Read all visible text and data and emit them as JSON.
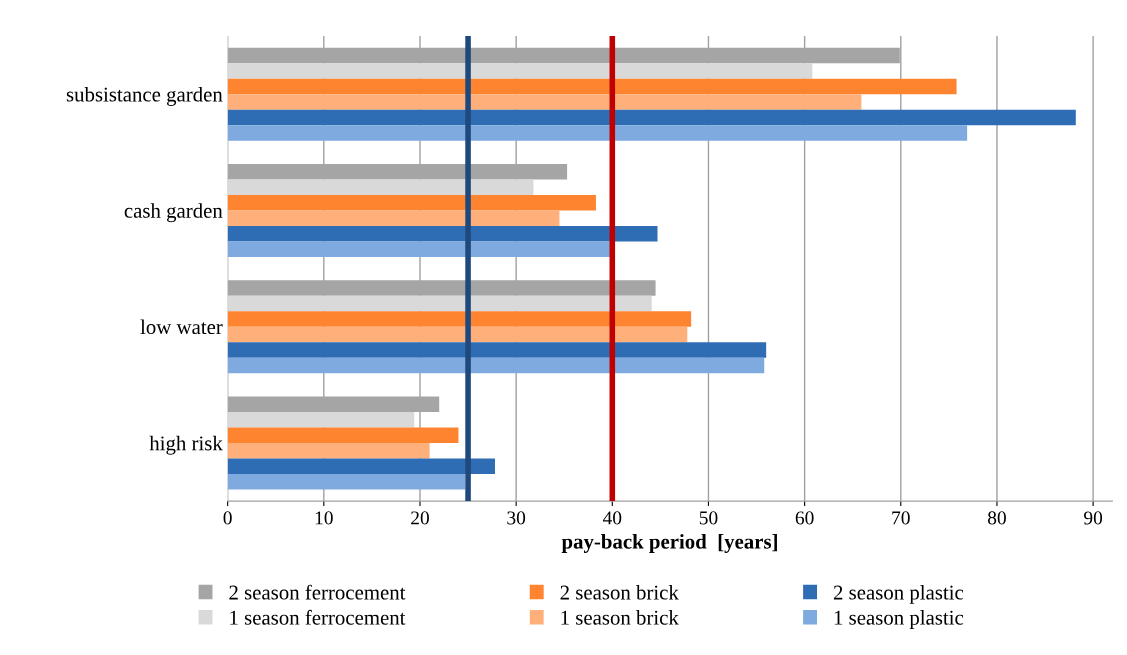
{
  "chart_data": {
    "type": "bar",
    "orientation": "horizontal",
    "xlabel": "pay-back period  [years]",
    "categories": [
      "subsistance garden",
      "cash garden",
      "low water",
      "high risk"
    ],
    "series": [
      {
        "name": "2 season ferrocement",
        "color": "#a5a5a5",
        "values": [
          69.9,
          35.3,
          44.5,
          22.0
        ]
      },
      {
        "name": "1 season ferrocement",
        "color": "#d9d9d9",
        "values": [
          60.8,
          31.8,
          44.1,
          19.4
        ]
      },
      {
        "name": "2 season brick",
        "color": "#fe8430",
        "values": [
          75.8,
          38.3,
          48.2,
          24.0
        ]
      },
      {
        "name": "1 season brick",
        "color": "#ffb07a",
        "values": [
          65.9,
          34.5,
          47.8,
          21.0
        ]
      },
      {
        "name": "2 season plastic",
        "color": "#2e6db4",
        "values": [
          88.2,
          44.7,
          56.0,
          27.8
        ]
      },
      {
        "name": "1 season plastic",
        "color": "#7eaadf",
        "values": [
          76.9,
          39.9,
          55.8,
          24.7
        ]
      }
    ],
    "xlim": [
      0,
      92
    ],
    "xticks": [
      0,
      10,
      20,
      30,
      40,
      50,
      60,
      70,
      80,
      90
    ],
    "ref_lines": [
      {
        "axis": "x",
        "value": 25,
        "label": null,
        "color": "#1f497d"
      },
      {
        "axis": "x",
        "value": 40,
        "label": null,
        "color": "#c00000"
      }
    ],
    "grid": "x",
    "legend": "bottom"
  }
}
